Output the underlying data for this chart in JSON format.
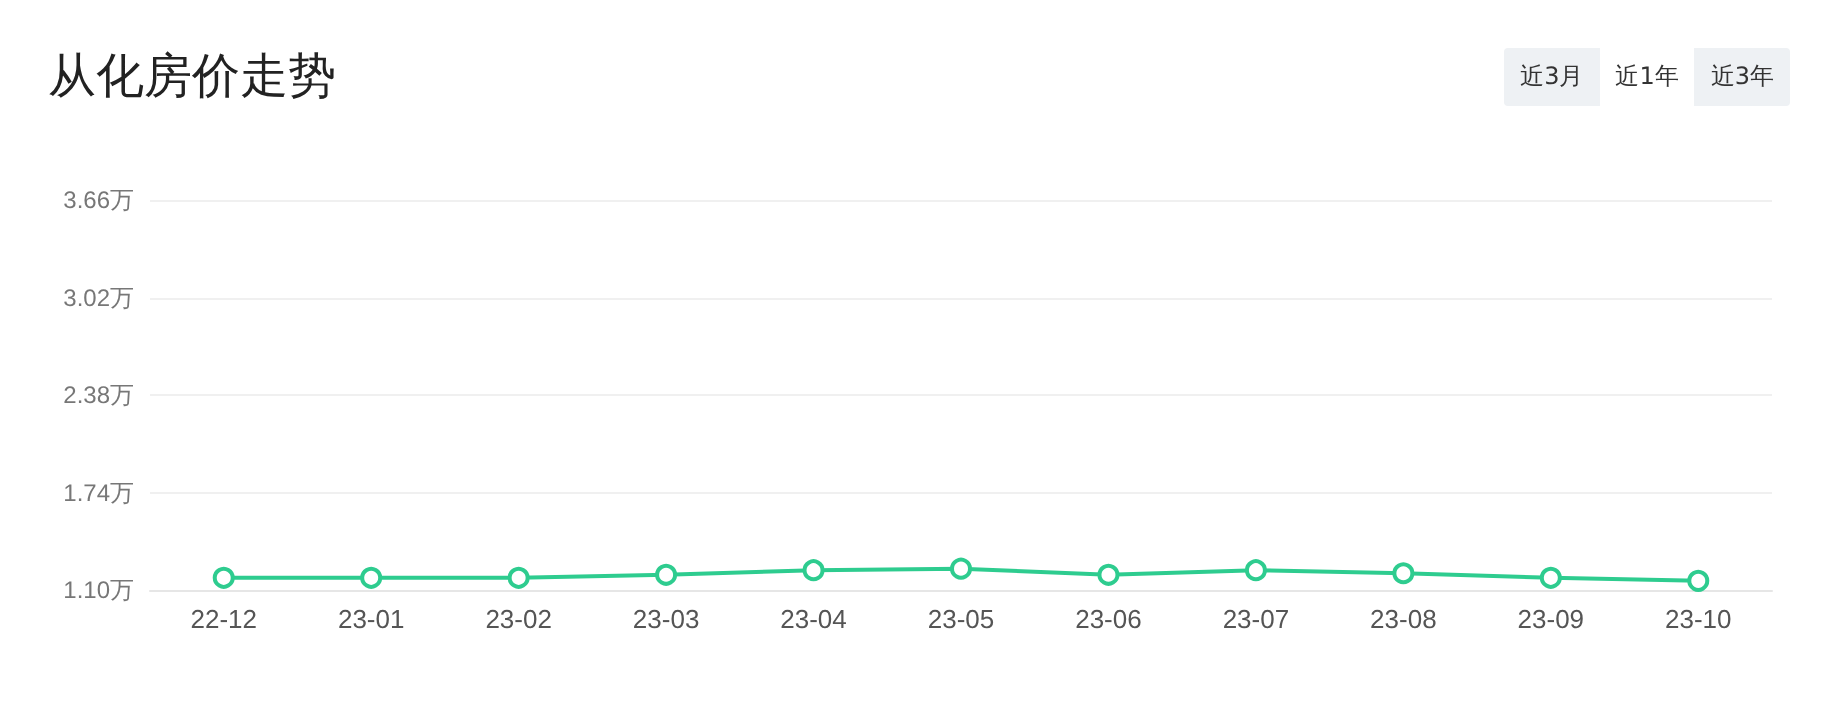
{
  "chart_data": {
    "type": "line",
    "title": "从化房价走势",
    "annotations": [
      "近3月",
      "近1年",
      "近3年"
    ],
    "categories": [
      "22-12",
      "23-01",
      "23-02",
      "23-03",
      "23-04",
      "23-05",
      "23-06",
      "23-07",
      "23-08",
      "23-09",
      "23-10"
    ],
    "series": [
      {
        "color": "#2ecc8f",
        "values": [
          1.18,
          1.18,
          1.18,
          1.2,
          1.23,
          1.24,
          1.2,
          1.23,
          1.21,
          1.18,
          1.16
        ]
      }
    ],
    "ylim": [
      1.1,
      3.66
    ],
    "yticks": [
      {
        "value": 1.1,
        "label": "1.10万"
      },
      {
        "value": 1.74,
        "label": "1.74万"
      },
      {
        "value": 2.38,
        "label": "2.38万"
      },
      {
        "value": 3.02,
        "label": "3.02万"
      },
      {
        "value": 3.66,
        "label": "3.66万"
      }
    ],
    "grid": "y",
    "marker": "circle",
    "line_style": "solid"
  }
}
